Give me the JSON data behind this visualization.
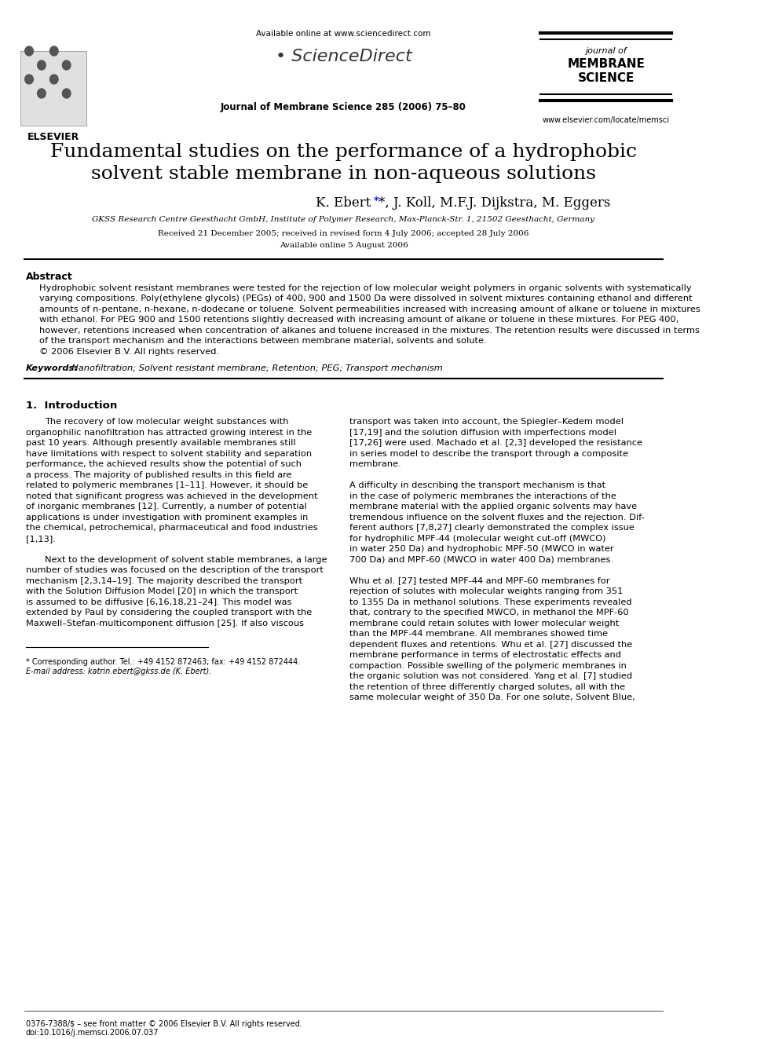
{
  "bg_color": "#ffffff",
  "header": {
    "available_online_text": "Available online at www.sciencedirect.com",
    "sciencedirect_text": "ScienceDirect",
    "journal_name_text": "Journal of Membrane Science 285 (2006) 75–80",
    "journal_of": "journal of",
    "membrane": "MEMBRANE",
    "science_word": "SCIENCE",
    "elsevier_text": "ELSEVIER",
    "website_text": "www.elsevier.com/locate/memsci"
  },
  "title_line1": "Fundamental studies on the performance of a hydrophobic",
  "title_line2": "solvent stable membrane in non-aqueous solutions",
  "authors": "K. Ebert¹*, J. Koll, M.F.J. Dijkstra, M. Eggers",
  "affiliation": "GKSS Research Centre Geesthacht GmbH, Institute of Polymer Research, Max-Planck-Str. 1, 21502 Geesthacht, Germany",
  "received": "Received 21 December 2005; received in revised form 4 July 2006; accepted 28 July 2006",
  "available_online": "Available online 5 August 2006",
  "abstract_title": "Abstract",
  "abstract_text": "Hydrophobic solvent resistant membranes were tested for the rejection of low molecular weight polymers in organic solvents with systematically varying compositions. Poly(ethylene glycols) (PEGs) of 400, 900 and 1500 Da were dissolved in solvent mixtures containing ethanol and different amounts of n-pentane, n-hexane, n-dodecane or toluene. Solvent permeabilities increased with increasing amount of alkane or toluene in mixtures with ethanol. For PEG 900 and 1500 retentions slightly decreased with increasing amount of alkane or toluene in these mixtures. For PEG 400, however, retentions increased when concentration of alkanes and toluene increased in the mixtures. The retention results were discussed in terms of the transport mechanism and the interactions between membrane material, solvents and solute.\n© 2006 Elsevier B.V. All rights reserved.",
  "keywords_label": "Keywords:",
  "keywords_text": "  Nanofiltration; Solvent resistant membrane; Retention; PEG; Transport mechanism",
  "section1_title": "1.  Introduction",
  "intro_col1": "The recovery of low molecular weight substances with organophilic nanofiltration has attracted growing interest in the past 10 years. Although presently available membranes still have limitations with respect to solvent stability and separation performance, the achieved results show the potential of such a process. The majority of published results in this field are related to polymeric membranes [1–11]. However, it should be noted that significant progress was achieved in the development of inorganic membranes [12]. Currently, a number of potential applications is under investigation with prominent examples in the chemical, petrochemical, pharmaceutical and food industries [1,13].\n\nNext to the development of solvent stable membranes, a large number of studies was focused on the description of the transport mechanism [2,3,14–19]. The majority described the transport with the Solution Diffusion Model [20] in which the transport is assumed to be diffusive [6,16,18,21–24]. This model was extended by Paul by considering the coupled transport with the Maxwell–Stefan-multicomponent diffusion [25]. If also viscous",
  "intro_col2": "transport was taken into account, the Spiegler–Kedem model [17,19] and the solution diffusion with imperfections model [17,26] were used. Machado et al. [2,3] developed the resistance in series model to describe the transport through a composite membrane.\n\nA difficulty in describing the transport mechanism is that in the case of polymeric membranes the interactions of the membrane material with the applied organic solvents may have tremendous influence on the solvent fluxes and the rejection. Different authors [7,8,27] clearly demonstrated the complex issue for hydrophilic MPF-44 (molecular weight cut-off (MWCO) in water 250 Da) and hydrophobic MPF-50 (MWCO in water 700 Da) and MPF-60 (MWCO in water 400 Da) membranes.\n\nWhu et al. [27] tested MPF-44 and MPF-60 membranes for rejection of solutes with molecular weights ranging from 351 to 1355 Da in methanol solutions. These experiments revealed that, contrary to the specified MWCO, in methanol the MPF-60 membrane could retain solutes with lower molecular weight than the MPF-44 membrane. All membranes showed time dependent fluxes and retentions. Whu et al. [27] discussed the membrane performance in terms of electrostatic effects and compaction. Possible swelling of the polymeric membranes in the organic solution was not considered. Yang et al. [7] studied the retention of three differently charged solutes, all with the same molecular weight of 350 Da. For one solute, Solvent Blue,",
  "footnote_star": "* Corresponding author. Tel.: +49 4152 872463; fax: +49 4152 872444.",
  "footnote_email": "E-mail address: katrin.ebert@gkss.de (K. Ebert).",
  "footer_issn": "0376-7388/$ – see front matter © 2006 Elsevier B.V. All rights reserved.",
  "footer_doi": "doi:10.1016/j.memsci.2006.07.037"
}
